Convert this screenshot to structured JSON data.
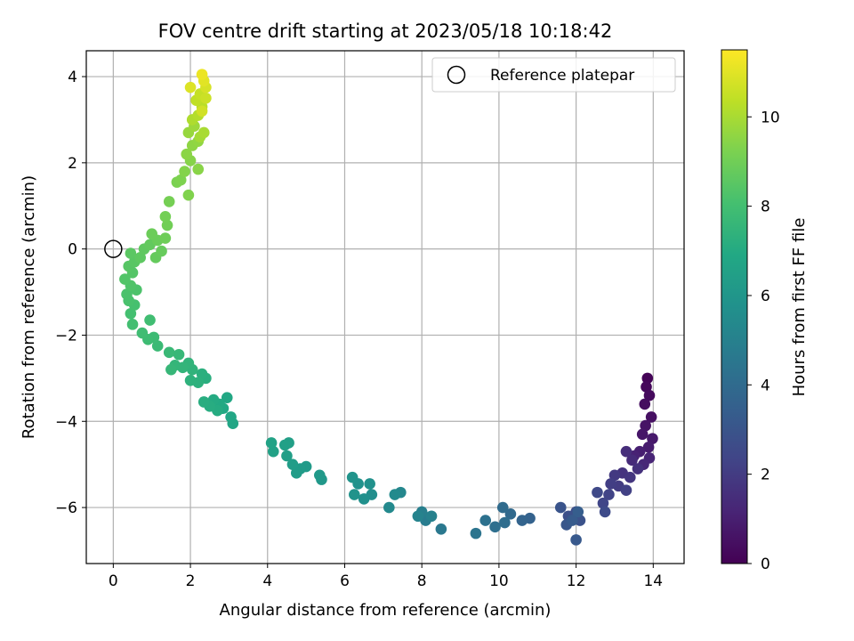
{
  "chart_data": {
    "type": "scatter",
    "title": "FOV centre drift starting at 2023/05/18 10:18:42",
    "xlabel": "Angular distance from reference (arcmin)",
    "ylabel": "Rotation from reference (arcmin)",
    "xlim": [
      -0.7,
      14.8
    ],
    "ylim": [
      -7.3,
      4.6
    ],
    "xticks": [
      0,
      2,
      4,
      6,
      8,
      10,
      12,
      14
    ],
    "yticks": [
      -6,
      -4,
      -2,
      0,
      2,
      4
    ],
    "grid": true,
    "legend": {
      "position": "top-right",
      "entries": [
        "Reference platepar"
      ]
    },
    "reference_point": {
      "x": 0,
      "y": 0
    },
    "colorbar": {
      "label": "Hours from first FF file",
      "min": 0,
      "max": 11.5,
      "ticks": [
        0,
        2,
        4,
        6,
        8,
        10
      ],
      "colormap": "viridis"
    },
    "series": [
      {
        "points": [
          [
            13.85,
            -3.0,
            0.1
          ],
          [
            13.82,
            -3.2,
            0.2
          ],
          [
            13.9,
            -3.4,
            0.3
          ],
          [
            13.78,
            -3.6,
            0.4
          ],
          [
            13.95,
            -3.9,
            0.5
          ],
          [
            13.8,
            -4.1,
            0.6
          ],
          [
            13.72,
            -4.3,
            0.7
          ],
          [
            13.98,
            -4.4,
            0.8
          ],
          [
            13.88,
            -4.6,
            0.9
          ],
          [
            13.65,
            -4.7,
            1.0
          ],
          [
            13.5,
            -4.8,
            1.1
          ],
          [
            13.9,
            -4.85,
            1.2
          ],
          [
            13.75,
            -5.0,
            1.3
          ],
          [
            13.45,
            -4.9,
            1.4
          ],
          [
            13.3,
            -4.7,
            1.5
          ],
          [
            13.6,
            -5.1,
            1.6
          ],
          [
            13.2,
            -5.2,
            1.7
          ],
          [
            13.4,
            -5.3,
            1.8
          ],
          [
            13.0,
            -5.25,
            1.9
          ],
          [
            13.1,
            -5.5,
            2.0
          ],
          [
            12.9,
            -5.45,
            2.1
          ],
          [
            13.3,
            -5.6,
            2.2
          ],
          [
            12.85,
            -5.7,
            2.3
          ],
          [
            12.7,
            -5.9,
            2.4
          ],
          [
            12.55,
            -5.65,
            2.5
          ],
          [
            12.75,
            -6.1,
            2.6
          ],
          [
            12.0,
            -6.1,
            2.7
          ],
          [
            11.8,
            -6.2,
            2.8
          ],
          [
            12.1,
            -6.3,
            2.9
          ],
          [
            11.6,
            -6.0,
            3.0
          ],
          [
            11.75,
            -6.4,
            3.1
          ],
          [
            12.0,
            -6.75,
            3.2
          ],
          [
            11.9,
            -6.3,
            3.3
          ],
          [
            12.05,
            -6.1,
            3.4
          ],
          [
            10.8,
            -6.25,
            3.6
          ],
          [
            10.6,
            -6.3,
            3.7
          ],
          [
            10.3,
            -6.15,
            3.9
          ],
          [
            10.1,
            -6.0,
            4.0
          ],
          [
            10.15,
            -6.35,
            4.1
          ],
          [
            9.9,
            -6.45,
            4.2
          ],
          [
            9.65,
            -6.3,
            4.3
          ],
          [
            9.4,
            -6.6,
            4.4
          ],
          [
            8.5,
            -6.5,
            4.6
          ],
          [
            8.1,
            -6.3,
            4.8
          ],
          [
            8.0,
            -6.1,
            4.9
          ],
          [
            8.25,
            -6.2,
            5.0
          ],
          [
            7.9,
            -6.2,
            5.1
          ],
          [
            7.45,
            -5.65,
            5.3
          ],
          [
            7.15,
            -6.0,
            5.4
          ],
          [
            7.3,
            -5.7,
            5.45
          ],
          [
            6.7,
            -5.7,
            5.6
          ],
          [
            6.5,
            -5.8,
            5.7
          ],
          [
            6.65,
            -5.45,
            5.75
          ],
          [
            6.35,
            -5.45,
            5.8
          ],
          [
            6.25,
            -5.7,
            5.85
          ],
          [
            6.2,
            -5.3,
            5.9
          ],
          [
            5.4,
            -5.35,
            6.1
          ],
          [
            5.35,
            -5.25,
            6.15
          ],
          [
            5.0,
            -5.05,
            6.2
          ],
          [
            4.85,
            -5.1,
            6.25
          ],
          [
            4.75,
            -5.2,
            6.3
          ],
          [
            4.65,
            -5.0,
            6.35
          ],
          [
            4.5,
            -4.8,
            6.4
          ],
          [
            4.55,
            -4.5,
            6.45
          ],
          [
            4.45,
            -4.55,
            6.5
          ],
          [
            4.15,
            -4.7,
            6.55
          ],
          [
            4.1,
            -4.5,
            6.6
          ],
          [
            3.1,
            -4.05,
            6.75
          ],
          [
            3.05,
            -3.9,
            6.8
          ],
          [
            2.95,
            -3.45,
            6.85
          ],
          [
            2.85,
            -3.7,
            6.9
          ],
          [
            2.75,
            -3.6,
            6.95
          ],
          [
            2.6,
            -3.5,
            7.0
          ],
          [
            2.7,
            -3.75,
            7.05
          ],
          [
            2.5,
            -3.65,
            7.1
          ],
          [
            2.35,
            -3.55,
            7.15
          ],
          [
            2.4,
            -3.0,
            7.2
          ],
          [
            2.3,
            -2.9,
            7.25
          ],
          [
            2.2,
            -3.1,
            7.3
          ],
          [
            2.0,
            -3.05,
            7.35
          ],
          [
            2.05,
            -2.8,
            7.4
          ],
          [
            1.95,
            -2.65,
            7.45
          ],
          [
            1.8,
            -2.75,
            7.5
          ],
          [
            1.6,
            -2.7,
            7.55
          ],
          [
            1.5,
            -2.8,
            7.6
          ],
          [
            1.7,
            -2.45,
            7.65
          ],
          [
            1.45,
            -2.4,
            7.7
          ],
          [
            1.15,
            -2.25,
            7.75
          ],
          [
            1.05,
            -2.05,
            7.8
          ],
          [
            0.9,
            -2.1,
            7.85
          ],
          [
            0.75,
            -1.95,
            7.9
          ],
          [
            0.95,
            -1.65,
            7.95
          ],
          [
            0.5,
            -1.75,
            8.0
          ],
          [
            0.45,
            -1.5,
            8.05
          ],
          [
            0.55,
            -1.3,
            8.1
          ],
          [
            0.4,
            -1.2,
            8.15
          ],
          [
            0.35,
            -1.05,
            8.2
          ],
          [
            0.6,
            -0.95,
            8.25
          ],
          [
            0.45,
            -0.85,
            8.3
          ],
          [
            0.3,
            -0.7,
            8.35
          ],
          [
            0.5,
            -0.55,
            8.4
          ],
          [
            0.4,
            -0.4,
            8.45
          ],
          [
            0.55,
            -0.3,
            8.5
          ],
          [
            0.45,
            -0.1,
            8.55
          ],
          [
            0.7,
            -0.2,
            8.6
          ],
          [
            0.8,
            0.0,
            8.65
          ],
          [
            0.95,
            0.1,
            8.7
          ],
          [
            1.1,
            -0.2,
            8.75
          ],
          [
            1.25,
            -0.05,
            8.8
          ],
          [
            1.15,
            0.2,
            8.85
          ],
          [
            1.0,
            0.35,
            8.9
          ],
          [
            1.35,
            0.25,
            8.95
          ],
          [
            1.4,
            0.55,
            9.0
          ],
          [
            1.35,
            0.75,
            9.05
          ],
          [
            1.45,
            1.1,
            9.1
          ],
          [
            1.65,
            1.55,
            9.2
          ],
          [
            1.75,
            1.6,
            9.25
          ],
          [
            1.95,
            1.25,
            9.3
          ],
          [
            1.85,
            1.8,
            9.35
          ],
          [
            2.0,
            2.05,
            9.4
          ],
          [
            2.2,
            1.85,
            9.45
          ],
          [
            1.9,
            2.2,
            9.5
          ],
          [
            2.05,
            2.4,
            9.55
          ],
          [
            2.2,
            2.5,
            9.6
          ],
          [
            1.95,
            2.7,
            9.7
          ],
          [
            2.1,
            2.85,
            9.8
          ],
          [
            2.25,
            2.6,
            9.9
          ],
          [
            2.35,
            2.7,
            10.0
          ],
          [
            2.05,
            3.0,
            10.1
          ],
          [
            2.2,
            3.1,
            10.2
          ],
          [
            2.3,
            3.3,
            10.3
          ],
          [
            2.15,
            3.45,
            10.4
          ],
          [
            2.25,
            3.6,
            10.5
          ],
          [
            2.4,
            3.5,
            10.6
          ],
          [
            2.3,
            3.2,
            10.7
          ],
          [
            2.4,
            3.75,
            10.8
          ],
          [
            2.0,
            3.75,
            10.9
          ],
          [
            2.35,
            3.9,
            11.0
          ],
          [
            2.3,
            4.05,
            11.2
          ]
        ]
      }
    ]
  }
}
